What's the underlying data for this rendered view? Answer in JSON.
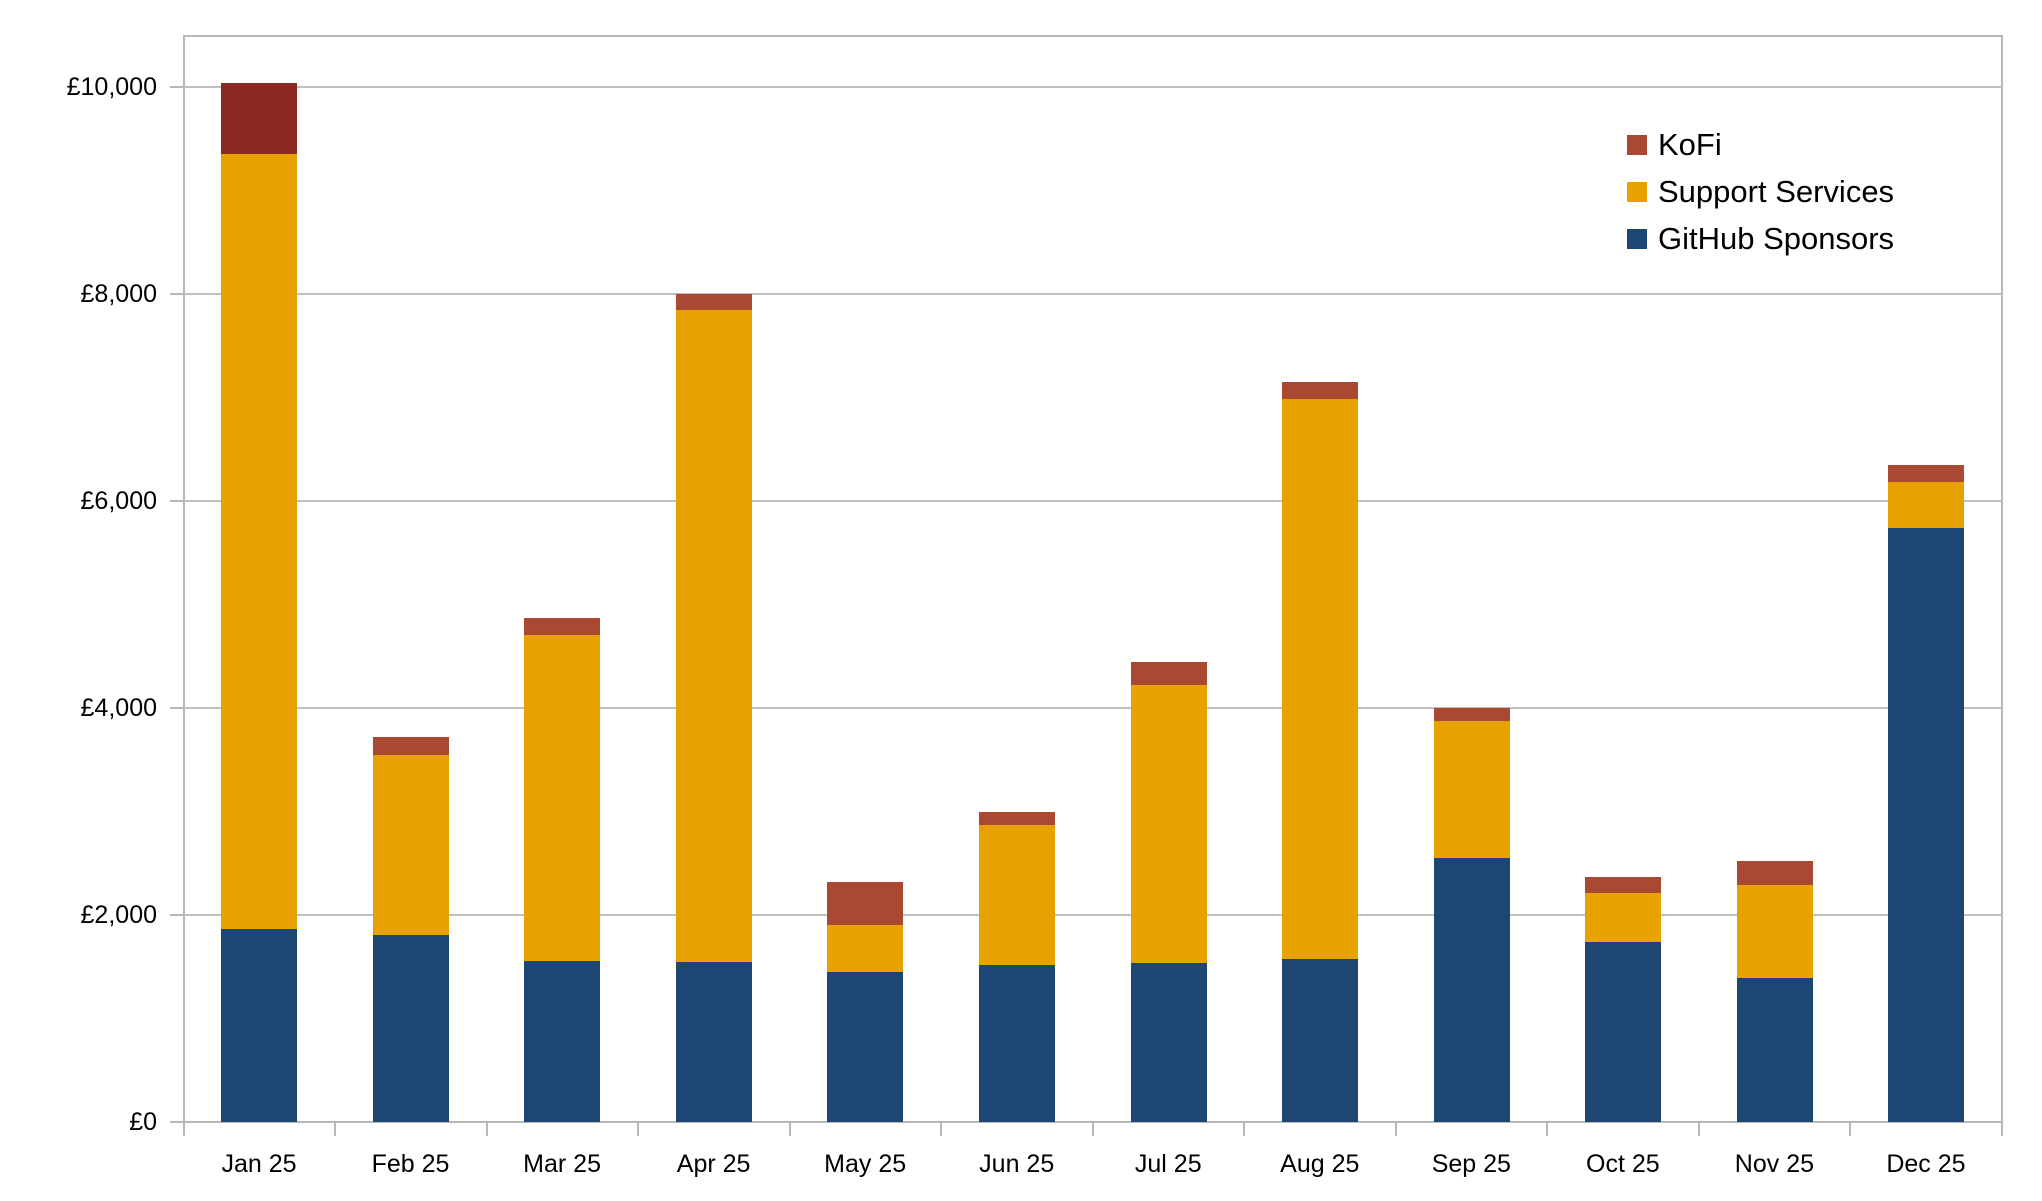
{
  "chart_data": {
    "type": "bar",
    "stacked": true,
    "title": "",
    "xlabel": "",
    "ylabel": "",
    "ylim": [
      0,
      10500
    ],
    "yticks": [
      0,
      2000,
      4000,
      6000,
      8000,
      10000
    ],
    "ytick_labels": [
      "£0",
      "£2,000",
      "£4,000",
      "£6,000",
      "£8,000",
      "£10,000"
    ],
    "grid": true,
    "legend_position": "top-right inside",
    "categories": [
      "Jan 25",
      "Feb 25",
      "Mar 25",
      "Apr 25",
      "May 25",
      "Jun 25",
      "Jul 25",
      "Aug 25",
      "Sep 25",
      "Oct 25",
      "Nov 25",
      "Dec 25"
    ],
    "series": [
      {
        "name": "GitHub Sponsors",
        "color": "#1E4672",
        "values": [
          1867,
          1809,
          1558,
          1551,
          1451,
          1519,
          1535,
          1580,
          2550,
          1741,
          1396,
          5740
        ]
      },
      {
        "name": "Support Services",
        "color": "#E8A200",
        "values": [
          7489,
          1745,
          3154,
          6301,
          451,
          1351,
          2689,
          5408,
          1326,
          477,
          900,
          452
        ]
      },
      {
        "name": "KoFi",
        "color": "#AB4832",
        "values": [
          686,
          174,
          164,
          152,
          420,
          129,
          220,
          162,
          129,
          148,
          229,
          164
        ],
        "point_colors": {
          "0": "#8B2820"
        }
      }
    ],
    "totals": [
      10042,
      3728,
      4876,
      8004,
      2322,
      2999,
      4444,
      7150,
      4005,
      2366,
      2525,
      6356
    ]
  },
  "legend": {
    "items": [
      {
        "label": "KoFi",
        "color": "#AB4832"
      },
      {
        "label": "Support Services",
        "color": "#E8A200"
      },
      {
        "label": "GitHub Sponsors",
        "color": "#1E4672"
      }
    ]
  },
  "colors": {
    "gridline": "#c0c0c0",
    "axis": "#b8b8b8",
    "background": "#ffffff"
  }
}
